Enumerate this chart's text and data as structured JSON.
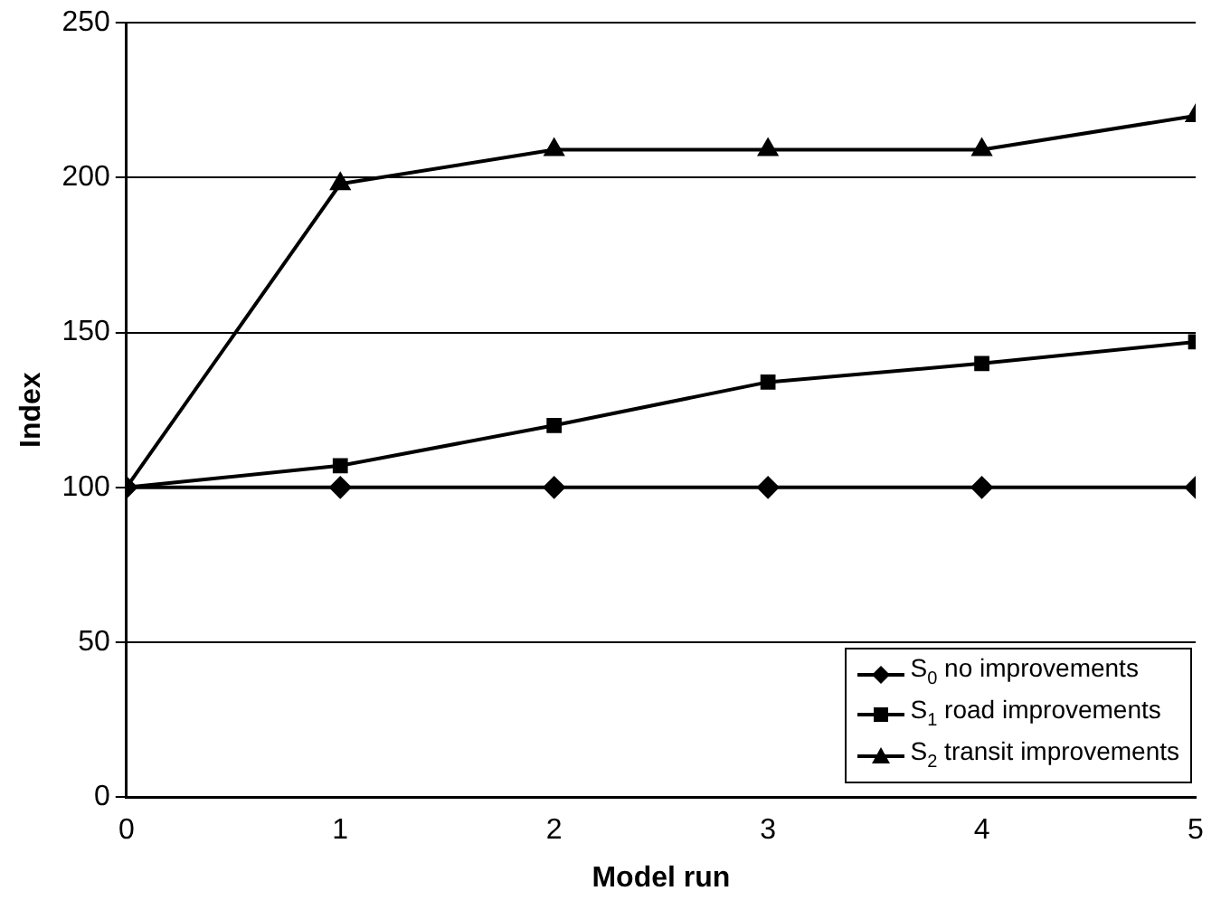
{
  "chart_data": {
    "type": "line",
    "xlabel": "Model run",
    "ylabel": "Index",
    "x": [
      0,
      1,
      2,
      3,
      4,
      5
    ],
    "xlim": [
      0,
      5
    ],
    "xticks": [
      0,
      1,
      2,
      3,
      4,
      5
    ],
    "ylim": [
      0,
      250
    ],
    "yticks": [
      0,
      50,
      100,
      150,
      200,
      250
    ],
    "grid": "y",
    "legend": "bottom right",
    "series": [
      {
        "name": "S$_{0}$ no improvements",
        "color": "#000000",
        "marker": "diamond",
        "values": [
          100,
          100,
          100,
          100,
          100,
          100
        ]
      },
      {
        "name": "S$_{1}$ road improvements",
        "color": "#000000",
        "marker": "square",
        "values": [
          100,
          107,
          120,
          134,
          140,
          147
        ]
      },
      {
        "name": "S$_{2}$ transit improvements",
        "color": "#000000",
        "marker": "triangle",
        "values": [
          100,
          198,
          209,
          209,
          209,
          220
        ]
      }
    ]
  }
}
